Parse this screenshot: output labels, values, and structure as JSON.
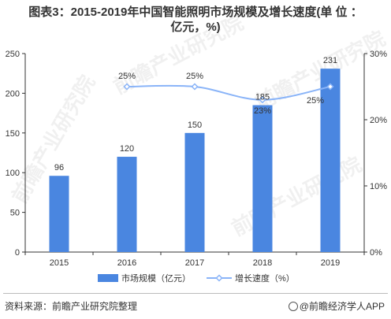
{
  "title_line1": "图表3：2015-2019年中国智能照明市场规模及增长速度(单 位 ：",
  "title_line2": "亿元，%)",
  "source": "资料来源：前瞻产业研究院整理",
  "brand": "@前瞻经济学人APP",
  "watermark": "前瞻产业研究院",
  "colors": {
    "bar": "#4a86e0",
    "line": "#8ab4f8",
    "axis": "#333333",
    "grid": "#d9d9d9"
  },
  "chart_data": {
    "type": "bar",
    "categories": [
      "2015",
      "2016",
      "2017",
      "2018",
      "2019"
    ],
    "series": [
      {
        "name": "市场规模（亿元）",
        "type": "bar",
        "axis": "left",
        "values": [
          96,
          120,
          150,
          185,
          231
        ],
        "labels": [
          "96",
          "120",
          "150",
          "185",
          "231"
        ]
      },
      {
        "name": "增长速度（%）",
        "type": "line",
        "axis": "right",
        "values": [
          null,
          25,
          25,
          23,
          25
        ],
        "labels": [
          "",
          "25%",
          "25%",
          "23%",
          "25%"
        ]
      }
    ],
    "ylim": [
      0,
      250
    ],
    "yticks": [
      "0",
      "50",
      "100",
      "150",
      "200",
      "250"
    ],
    "y2lim": [
      0,
      30
    ],
    "y2ticks": [
      "0%",
      "10%",
      "20%",
      "30%"
    ],
    "legend_position": "bottom",
    "grid": false
  }
}
